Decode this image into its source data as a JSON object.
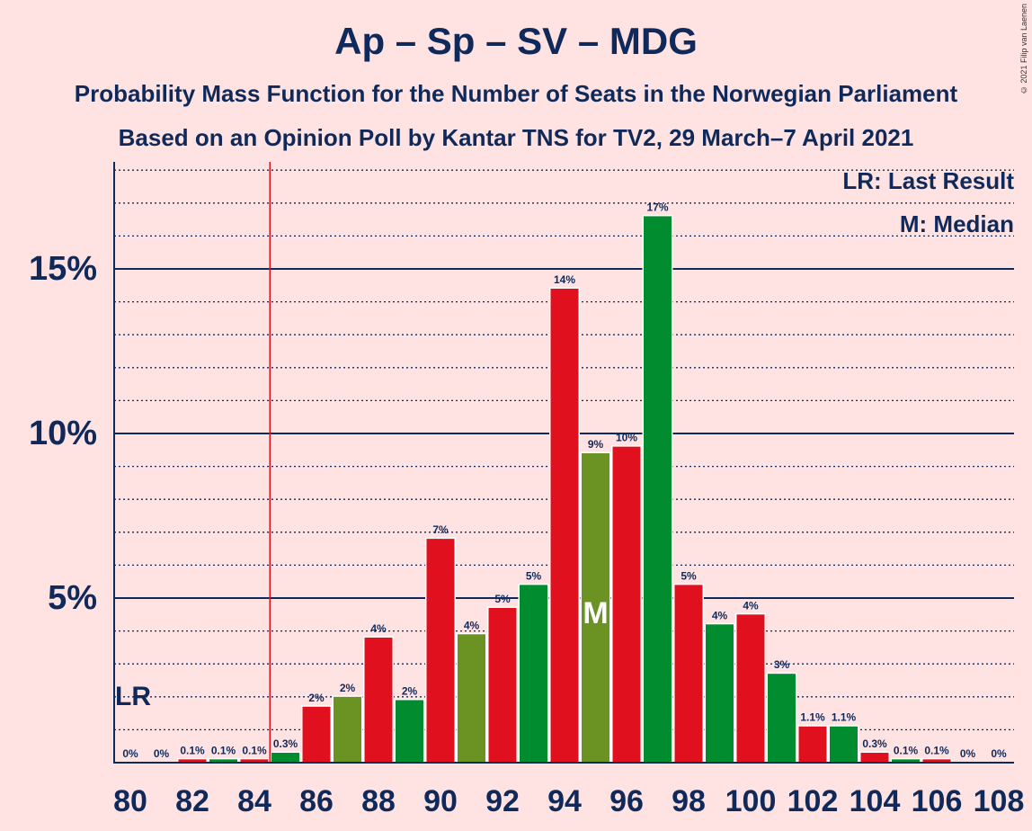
{
  "title": "Ap – Sp – SV – MDG",
  "subtitle1": "Probability Mass Function for the Number of Seats in the Norwegian Parliament",
  "subtitle2": "Based on an Opinion Poll by Kantar TNS for TV2, 29 March–7 April 2021",
  "copyright": "© 2021 Filip van Laenen",
  "legend": {
    "last_result": "LR: Last Result",
    "median": "M: Median"
  },
  "chart_data": {
    "type": "bar",
    "x": [
      80,
      81,
      82,
      83,
      84,
      85,
      86,
      87,
      88,
      89,
      90,
      91,
      92,
      93,
      94,
      95,
      96,
      97,
      98,
      99,
      100,
      101,
      102,
      103,
      104,
      105,
      106,
      107,
      108
    ],
    "values": [
      0,
      0,
      0.1,
      0.1,
      0.1,
      0.3,
      1.7,
      2,
      3.8,
      1.9,
      6.8,
      3.9,
      4.7,
      5.4,
      14.4,
      9.4,
      9.6,
      16.6,
      5.4,
      4.2,
      4.5,
      2.7,
      1.1,
      1.1,
      0.3,
      0.1,
      0.1,
      0,
      0
    ],
    "labels": [
      "0%",
      "0%",
      "0.1%",
      "0.1%",
      "0.1%",
      "0.3%",
      "2%",
      "2%",
      "4%",
      "2%",
      "7%",
      "4%",
      "5%",
      "5%",
      "14%",
      "9%",
      "10%",
      "17%",
      "5%",
      "4%",
      "4%",
      "3%",
      "1.1%",
      "1.1%",
      "0.3%",
      "0.1%",
      "0.1%",
      "0%",
      "0%"
    ],
    "x_tick_labels": [
      "80",
      "82",
      "84",
      "86",
      "88",
      "90",
      "92",
      "94",
      "96",
      "98",
      "100",
      "102",
      "104",
      "106",
      "108"
    ],
    "y_tick_labels": [
      "5%",
      "10%",
      "15%"
    ],
    "y_ticks": [
      5,
      10,
      15
    ],
    "ylim": [
      0,
      18.2
    ],
    "last_result": 84.5,
    "last_result_label": "LR",
    "median": 95,
    "median_label": "M",
    "colors": {
      "red": "#e0101e",
      "green": "#008c2f",
      "olive": "#6b9324",
      "axis": "#0f2a5a",
      "lr_line": "#e0101e"
    }
  }
}
